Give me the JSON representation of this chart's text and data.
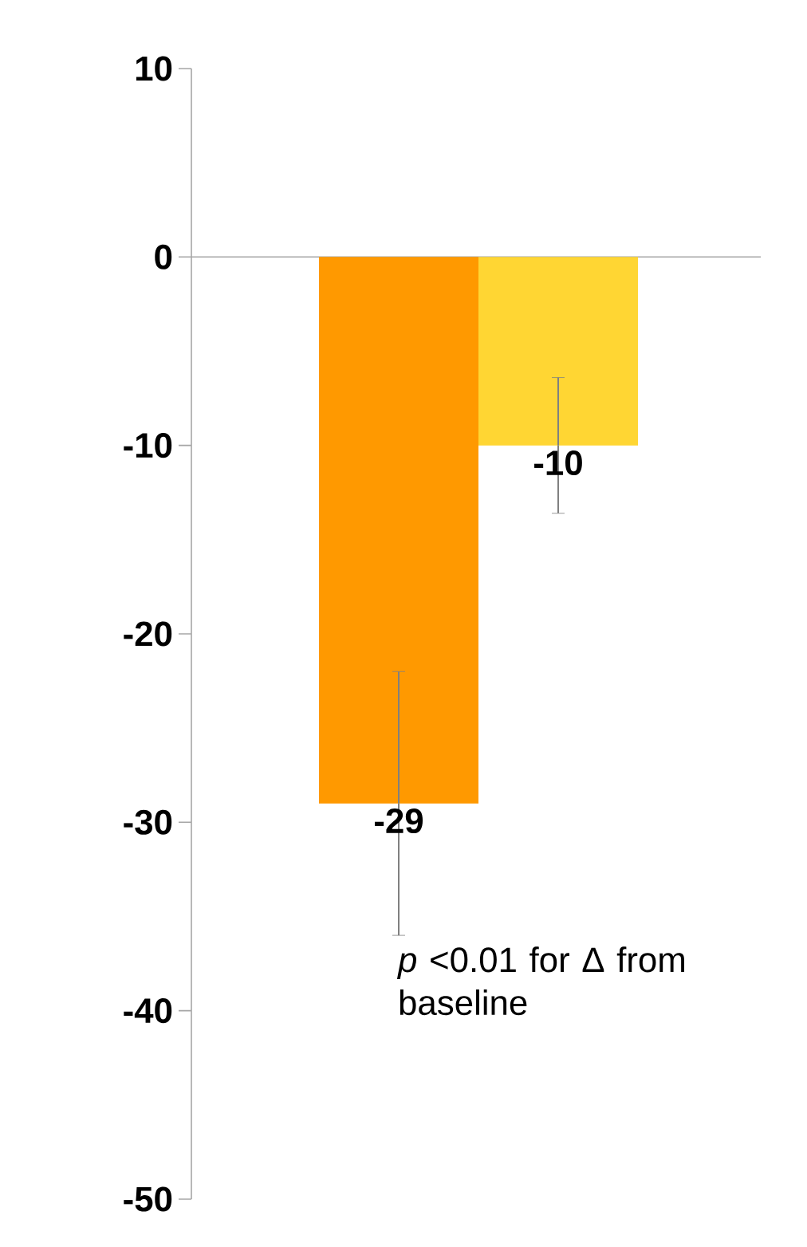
{
  "chart_data": {
    "type": "bar",
    "categories": [
      null,
      null
    ],
    "values": [
      -29,
      -10
    ],
    "colors": [
      "#ff9900",
      "#ffd633"
    ],
    "errors": [
      7,
      3.6
    ],
    "data_labels": true,
    "ylim": [
      -50,
      10
    ],
    "yticks": [
      -50,
      -40,
      -30,
      -20,
      -10,
      0,
      10
    ],
    "annotations": [
      "*p* <0.01 for Δ from baseline"
    ]
  }
}
